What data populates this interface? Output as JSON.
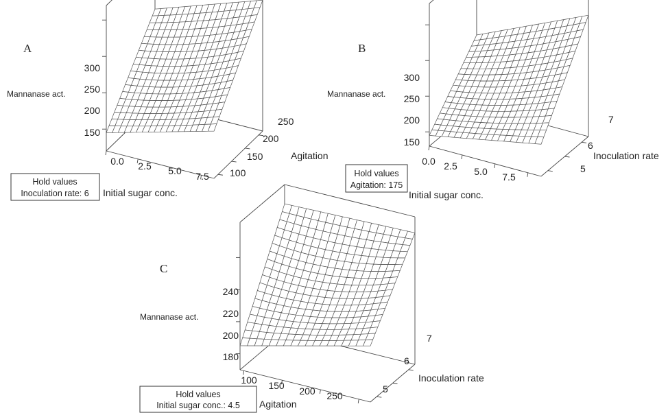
{
  "chart_data": [
    {
      "type": "surface",
      "panel": "A",
      "zlabel": "Mannanase act.",
      "xlabel": "Initial sugar conc.",
      "ylabel": "Agitation",
      "x_ticks": [
        "0.0",
        "2.5",
        "5.0",
        "7.5"
      ],
      "y_ticks": [
        "100",
        "150",
        "200",
        "250"
      ],
      "z_ticks": [
        "150",
        "200",
        "250",
        "300"
      ],
      "xlim": [
        0,
        8.5
      ],
      "ylim": [
        85,
        265
      ],
      "zlim": [
        120,
        320
      ],
      "corners": {
        "x0y0": 145,
        "x1y0": 185,
        "x0y1": 250,
        "x1y1": 300
      },
      "hold_values": [
        "Hold values",
        "Inoculation rate: 6"
      ]
    },
    {
      "type": "surface",
      "panel": "B",
      "zlabel": "Mannanase act.",
      "xlabel": "Initial sugar conc.",
      "ylabel": "Inoculation rate",
      "x_ticks": [
        "0.0",
        "2.5",
        "5.0",
        "7.5"
      ],
      "y_ticks": [
        "5",
        "6",
        "7"
      ],
      "z_ticks": [
        "150",
        "200",
        "250",
        "300"
      ],
      "xlim": [
        0,
        8.5
      ],
      "ylim": [
        4.6,
        7.4
      ],
      "zlim": [
        130,
        330
      ],
      "corners": {
        "x0y0": 145,
        "x1y0": 175,
        "x0y1": 230,
        "x1y1": 300
      },
      "hold_values": [
        "Hold values",
        "Agitation: 175"
      ]
    },
    {
      "type": "surface",
      "panel": "C",
      "zlabel": "Mannanase act.",
      "xlabel": "Agitation",
      "ylabel": "Inoculation rate",
      "x_ticks": [
        "100",
        "150",
        "200",
        "250"
      ],
      "y_ticks": [
        "5",
        "6",
        "7"
      ],
      "z_ticks": [
        "180",
        "200",
        "220",
        "240"
      ],
      "xlim": [
        95,
        265
      ],
      "ylim": [
        4.6,
        7.4
      ],
      "zlim": [
        170,
        262
      ],
      "corners": {
        "x0y0": 185,
        "x1y0": 205,
        "x0y1": 250,
        "x1y1": 252
      },
      "hold_values": [
        "Hold values",
        "Initial sugar conc.: 4.5"
      ]
    }
  ]
}
